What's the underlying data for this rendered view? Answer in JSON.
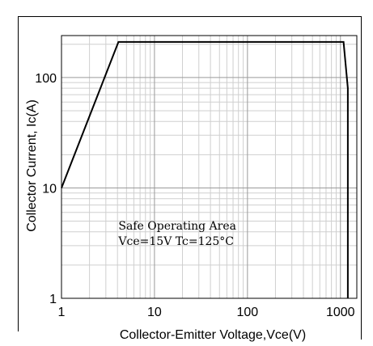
{
  "chart_data": {
    "type": "line",
    "title": "",
    "xlabel": "Collector-Emitter Voltage,Vce(V)",
    "ylabel": "Collector Current,  Ic(A)",
    "x_scale": "log",
    "y_scale": "log",
    "xlim": [
      1,
      1500
    ],
    "ylim": [
      1,
      240
    ],
    "grid": true,
    "x_ticks": [
      {
        "value": 1,
        "label": "1"
      },
      {
        "value": 10,
        "label": "10"
      },
      {
        "value": 100,
        "label": "100"
      },
      {
        "value": 1000,
        "label": "1000"
      }
    ],
    "y_ticks": [
      {
        "value": 1,
        "label": "1"
      },
      {
        "value": 10,
        "label": "10"
      },
      {
        "value": 100,
        "label": "100"
      }
    ],
    "series": [
      {
        "color": "#000000",
        "points": [
          {
            "x": 1,
            "y": 10
          },
          {
            "x": 4.1,
            "y": 210
          },
          {
            "x": 1080,
            "y": 210
          },
          {
            "x": 1200,
            "y": 80
          },
          {
            "x": 1200,
            "y": 1
          }
        ]
      }
    ],
    "annotations": [
      {
        "text": "Safe Operating Area",
        "x": 4.1,
        "y": 4.2
      },
      {
        "text": "Vce=15V  Tc=125°C",
        "x": 4.1,
        "y": 3.05
      }
    ]
  }
}
